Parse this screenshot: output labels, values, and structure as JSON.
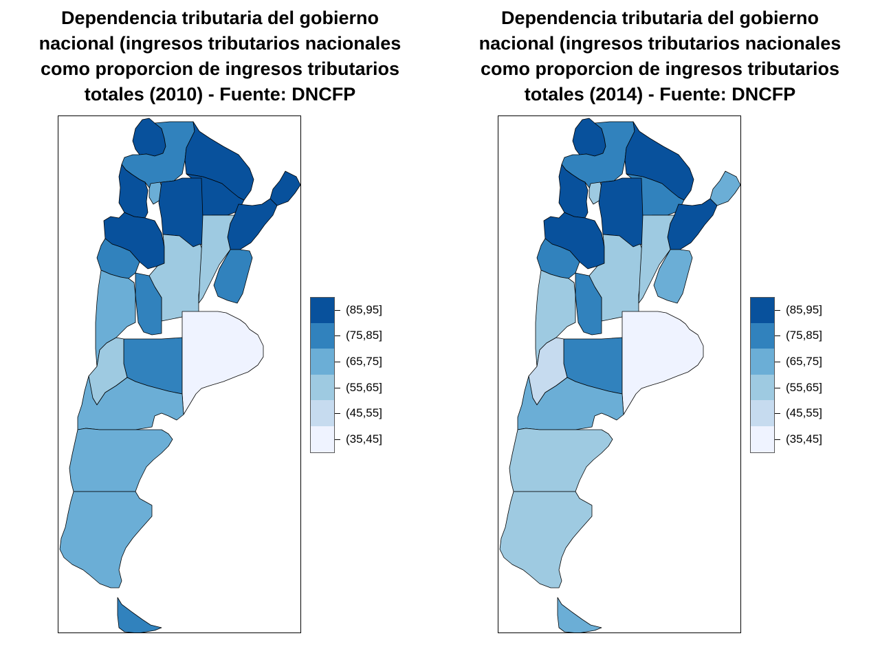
{
  "palette": [
    "#EFF3FF",
    "#C6DBEF",
    "#9ECAE1",
    "#6BAED6",
    "#3182BD",
    "#08519C"
  ],
  "legend": {
    "labels": [
      "(85,95]",
      "(75,85]",
      "(65,75]",
      "(55,65]",
      "(45,55]",
      "(35,45]"
    ],
    "colors": [
      "#08519C",
      "#3182BD",
      "#6BAED6",
      "#9ECAE1",
      "#C6DBEF",
      "#EFF3FF"
    ]
  },
  "maps": [
    {
      "title_lines": [
        "Dependencia tributaria del gobierno",
        "nacional (ingresos tributarios nacionales",
        "como proporcion de ingresos tributarios",
        "totales (2010) - Fuente: DNCFP"
      ],
      "year": "2010",
      "regions": [
        {
          "id": "jujuy",
          "cls": 5
        },
        {
          "id": "salta",
          "cls": 4
        },
        {
          "id": "formosa",
          "cls": 5
        },
        {
          "id": "chaco",
          "cls": 5
        },
        {
          "id": "misiones",
          "cls": 5
        },
        {
          "id": "catamarca",
          "cls": 5
        },
        {
          "id": "tucuman",
          "cls": 3
        },
        {
          "id": "santiago",
          "cls": 5
        },
        {
          "id": "corrientes",
          "cls": 5
        },
        {
          "id": "larioja",
          "cls": 5
        },
        {
          "id": "sanjuan",
          "cls": 4
        },
        {
          "id": "cordoba",
          "cls": 2
        },
        {
          "id": "santafe",
          "cls": 2
        },
        {
          "id": "entrerios",
          "cls": 4
        },
        {
          "id": "mendoza",
          "cls": 3
        },
        {
          "id": "sanluis",
          "cls": 4
        },
        {
          "id": "lapampa",
          "cls": 4
        },
        {
          "id": "buenosaires",
          "cls": 0
        },
        {
          "id": "neuquen",
          "cls": 2
        },
        {
          "id": "rionegro",
          "cls": 3
        },
        {
          "id": "chubut",
          "cls": 3
        },
        {
          "id": "santacruz",
          "cls": 3
        },
        {
          "id": "tierradelfuego",
          "cls": 4
        }
      ]
    },
    {
      "title_lines": [
        "Dependencia tributaria del gobierno",
        "nacional (ingresos tributarios nacionales",
        "como proporcion de ingresos tributarios",
        "totales (2014) - Fuente: DNCFP"
      ],
      "year": "2014",
      "regions": [
        {
          "id": "jujuy",
          "cls": 5
        },
        {
          "id": "salta",
          "cls": 4
        },
        {
          "id": "formosa",
          "cls": 5
        },
        {
          "id": "chaco",
          "cls": 4
        },
        {
          "id": "misiones",
          "cls": 3
        },
        {
          "id": "catamarca",
          "cls": 5
        },
        {
          "id": "tucuman",
          "cls": 2
        },
        {
          "id": "santiago",
          "cls": 5
        },
        {
          "id": "corrientes",
          "cls": 5
        },
        {
          "id": "larioja",
          "cls": 5
        },
        {
          "id": "sanjuan",
          "cls": 4
        },
        {
          "id": "cordoba",
          "cls": 2
        },
        {
          "id": "santafe",
          "cls": 2
        },
        {
          "id": "entrerios",
          "cls": 3
        },
        {
          "id": "mendoza",
          "cls": 2
        },
        {
          "id": "sanluis",
          "cls": 4
        },
        {
          "id": "lapampa",
          "cls": 4
        },
        {
          "id": "buenosaires",
          "cls": 0
        },
        {
          "id": "neuquen",
          "cls": 1
        },
        {
          "id": "rionegro",
          "cls": 3
        },
        {
          "id": "chubut",
          "cls": 2
        },
        {
          "id": "santacruz",
          "cls": 2
        },
        {
          "id": "tierradelfuego",
          "cls": 3
        }
      ]
    }
  ]
}
